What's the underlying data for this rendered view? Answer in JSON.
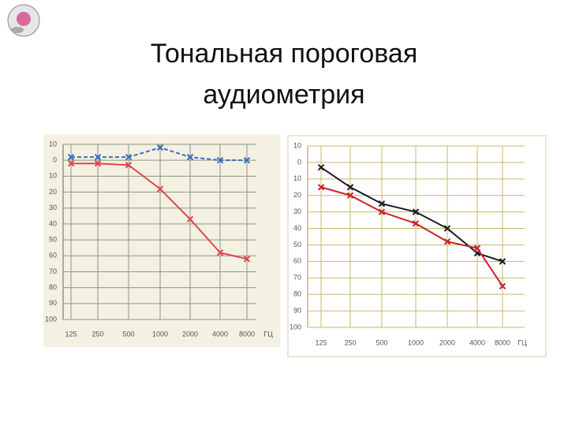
{
  "title": [
    "Тональная пороговая",
    "аудиометрия"
  ],
  "chart_data": [
    {
      "type": "line",
      "categories": [
        "125",
        "250",
        "500",
        "1000",
        "2000",
        "4000",
        "8000"
      ],
      "x_label": "ГЦ",
      "ylim": [
        -10,
        100
      ],
      "yticks": [
        {
          "value": -10,
          "label": "10"
        },
        0,
        10,
        20,
        30,
        40,
        50,
        60,
        70,
        80,
        90,
        100
      ],
      "inverted": true,
      "grid": true,
      "series": [
        {
          "color": "#3a6fc4",
          "dashed": true,
          "values": [
            -2,
            -2,
            -2,
            -8,
            -2,
            0,
            0
          ]
        },
        {
          "color": "#e0484e",
          "dashed": false,
          "values": [
            2,
            2,
            3,
            18,
            37,
            58,
            62
          ]
        }
      ]
    },
    {
      "type": "line",
      "categories": [
        "125",
        "250",
        "500",
        "1000",
        "2000",
        "4000",
        "8000"
      ],
      "x_label": "ГЦ",
      "ylim": [
        -10,
        100
      ],
      "yticks": [
        {
          "value": -10,
          "label": "10"
        },
        0,
        10,
        20,
        30,
        40,
        50,
        60,
        70,
        80,
        90,
        100
      ],
      "inverted": true,
      "grid": true,
      "series": [
        {
          "color": "#1a1a2a",
          "dashed": false,
          "values": [
            3,
            15,
            25,
            30,
            40,
            55,
            60
          ]
        },
        {
          "color": "#c8242c",
          "dashed": false,
          "values": [
            15,
            20,
            30,
            37,
            48,
            52,
            75
          ]
        }
      ]
    }
  ]
}
